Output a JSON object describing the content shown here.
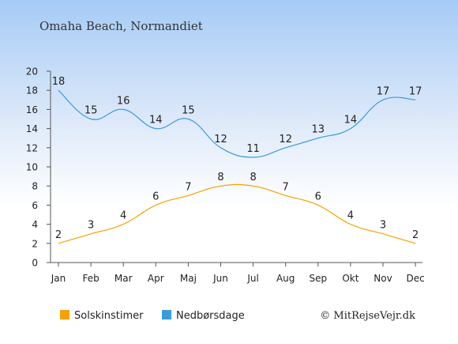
{
  "header": {
    "title": "Omaha Beach, Normandiet"
  },
  "footer": {
    "credit": "© MitRejseVejr.dk"
  },
  "chart_data": {
    "type": "line",
    "categories": [
      "Jan",
      "Feb",
      "Mar",
      "Apr",
      "Maj",
      "Jun",
      "Jul",
      "Aug",
      "Sep",
      "Okt",
      "Nov",
      "Dec"
    ],
    "ylim": [
      0,
      20
    ],
    "yticks": [
      0,
      2,
      4,
      6,
      8,
      10,
      12,
      14,
      16,
      18,
      20
    ],
    "grid": false,
    "legend_position": "bottom-left",
    "series": [
      {
        "name": "Solskinstimer",
        "color": "#f5a200",
        "values": [
          2,
          3,
          4,
          6,
          7,
          8,
          8,
          7,
          6,
          4,
          3,
          2
        ]
      },
      {
        "name": "Nedbørsdage",
        "color": "#3b9cdc",
        "values": [
          18,
          15,
          16,
          14,
          15,
          12,
          11,
          12,
          13,
          14,
          17,
          17
        ]
      }
    ]
  }
}
